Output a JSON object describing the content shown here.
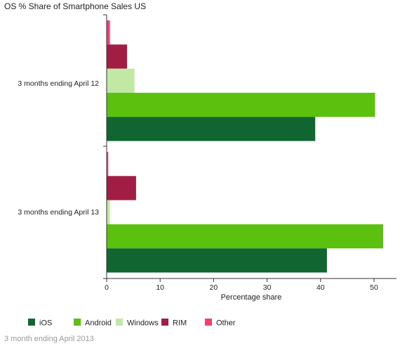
{
  "chart_data": {
    "type": "bar",
    "orientation": "horizontal",
    "title": "OS % Share of Smartphone Sales US",
    "categories": [
      "3 months ending April 12",
      "3 months ending April 13"
    ],
    "series": [
      {
        "name": "iOS",
        "color": "#116530",
        "values": [
          39.0,
          41.2
        ]
      },
      {
        "name": "Android",
        "color": "#5cc10e",
        "values": [
          50.2,
          51.7
        ]
      },
      {
        "name": "Windows",
        "color": "#c2e8a5",
        "values": [
          5.2,
          0.6
        ]
      },
      {
        "name": "RIM",
        "color": "#a21d44",
        "values": [
          3.8,
          5.5
        ]
      },
      {
        "name": "Other",
        "color": "#f2406c",
        "values": [
          0.6,
          0.3
        ]
      }
    ],
    "xlabel": "Percentage share",
    "ylabel": "",
    "xlim": [
      0,
      55
    ],
    "xticks": [
      0,
      10,
      20,
      30,
      40,
      50
    ],
    "grid": false,
    "legend": "bottom"
  },
  "footer": "3 month ending April 2013"
}
